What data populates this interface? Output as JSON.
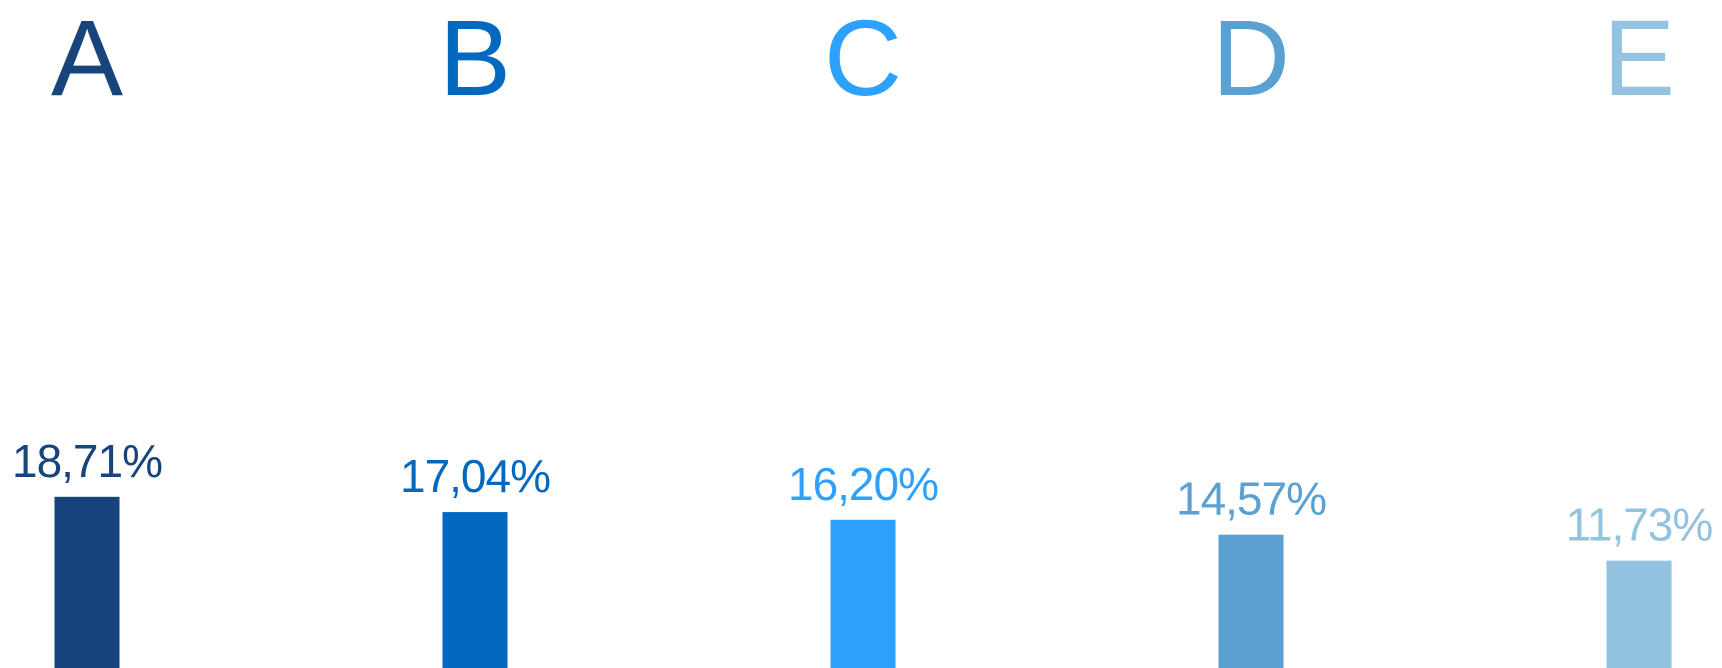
{
  "chart_data": {
    "type": "bar",
    "categories": [
      "A",
      "B",
      "C",
      "D",
      "E"
    ],
    "values": [
      18.71,
      17.04,
      16.2,
      14.57,
      11.73
    ],
    "value_labels": [
      "18,71%",
      "17,04%",
      "16,20%",
      "14,57%",
      "11,73%"
    ],
    "colors": [
      "#17447b",
      "#0369c0",
      "#2ea1ff",
      "#5aa0d0",
      "#94c2e1"
    ],
    "title": "",
    "xlabel": "",
    "ylabel": "",
    "ylim": [
      0,
      20
    ],
    "grid": false,
    "legend": "none"
  }
}
